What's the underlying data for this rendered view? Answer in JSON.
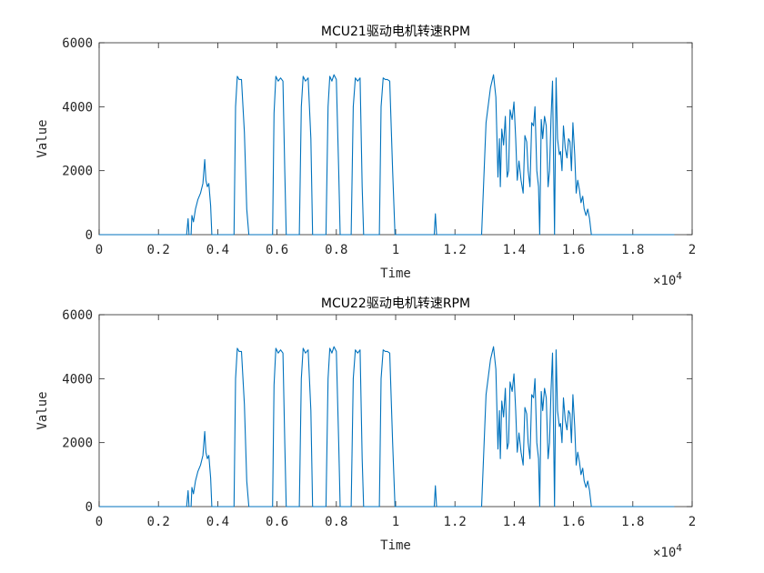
{
  "colors": {
    "series": "#0072BD",
    "axis": "#262626"
  },
  "chart_data": [
    {
      "type": "line",
      "title": "MCU21驱动电机转速RPM",
      "xlabel": "Time",
      "ylabel": "Value",
      "xlim": [
        0,
        20000
      ],
      "ylim": [
        0,
        6000
      ],
      "x_ticks": [
        0,
        2000,
        4000,
        6000,
        8000,
        10000,
        12000,
        14000,
        16000,
        18000,
        20000
      ],
      "x_tick_labels": [
        "0",
        "0.2",
        "0.4",
        "0.6",
        "0.8",
        "1",
        "1.2",
        "1.4",
        "1.6",
        "1.8",
        "2"
      ],
      "y_ticks": [
        0,
        2000,
        4000,
        6000
      ],
      "y_tick_labels": [
        "0",
        "2000",
        "4000",
        "6000"
      ],
      "x_exponent_label": "×10",
      "x_exponent_power": "4",
      "grid": false,
      "series": [
        {
          "points": [
            [
              0,
              0
            ],
            [
              2950,
              0
            ],
            [
              3000,
              500
            ],
            [
              3030,
              0
            ],
            [
              3100,
              0
            ],
            [
              3130,
              600
            ],
            [
              3180,
              400
            ],
            [
              3250,
              800
            ],
            [
              3330,
              1100
            ],
            [
              3420,
              1300
            ],
            [
              3500,
              1600
            ],
            [
              3560,
              2350
            ],
            [
              3600,
              1700
            ],
            [
              3650,
              1500
            ],
            [
              3700,
              1600
            ],
            [
              3760,
              900
            ],
            [
              3800,
              0
            ],
            [
              4550,
              0
            ],
            [
              4600,
              4000
            ],
            [
              4660,
              4950
            ],
            [
              4720,
              4850
            ],
            [
              4800,
              4850
            ],
            [
              4900,
              3200
            ],
            [
              4980,
              800
            ],
            [
              5050,
              0
            ],
            [
              5850,
              0
            ],
            [
              5900,
              3800
            ],
            [
              5960,
              4950
            ],
            [
              6040,
              4800
            ],
            [
              6120,
              4900
            ],
            [
              6200,
              4800
            ],
            [
              6260,
              2000
            ],
            [
              6310,
              0
            ],
            [
              6750,
              0
            ],
            [
              6820,
              4000
            ],
            [
              6880,
              4950
            ],
            [
              6960,
              4800
            ],
            [
              7050,
              4900
            ],
            [
              7140,
              3000
            ],
            [
              7200,
              0
            ],
            [
              7650,
              0
            ],
            [
              7720,
              4000
            ],
            [
              7780,
              4950
            ],
            [
              7850,
              4800
            ],
            [
              7920,
              5000
            ],
            [
              8000,
              4850
            ],
            [
              8080,
              2000
            ],
            [
              8130,
              0
            ],
            [
              8500,
              0
            ],
            [
              8570,
              4000
            ],
            [
              8640,
              4900
            ],
            [
              8720,
              4800
            ],
            [
              8800,
              4900
            ],
            [
              8870,
              1500
            ],
            [
              8920,
              0
            ],
            [
              9450,
              0
            ],
            [
              9510,
              4000
            ],
            [
              9580,
              4900
            ],
            [
              9650,
              4850
            ],
            [
              9720,
              4850
            ],
            [
              9800,
              4800
            ],
            [
              9900,
              2000
            ],
            [
              9980,
              0
            ],
            [
              11300,
              0
            ],
            [
              11340,
              650
            ],
            [
              11380,
              0
            ],
            [
              12900,
              0
            ],
            [
              13050,
              3500
            ],
            [
              13200,
              4600
            ],
            [
              13300,
              5000
            ],
            [
              13380,
              4300
            ],
            [
              13450,
              1800
            ],
            [
              13500,
              3000
            ],
            [
              13530,
              1500
            ],
            [
              13580,
              3300
            ],
            [
              13640,
              2800
            ],
            [
              13700,
              3700
            ],
            [
              13760,
              1800
            ],
            [
              13810,
              2000
            ],
            [
              13860,
              3900
            ],
            [
              13930,
              3600
            ],
            [
              13990,
              4150
            ],
            [
              14050,
              3000
            ],
            [
              14100,
              1700
            ],
            [
              14160,
              2300
            ],
            [
              14230,
              1700
            ],
            [
              14300,
              1300
            ],
            [
              14360,
              3100
            ],
            [
              14420,
              2900
            ],
            [
              14470,
              2000
            ],
            [
              14530,
              1500
            ],
            [
              14590,
              3500
            ],
            [
              14650,
              3400
            ],
            [
              14700,
              4000
            ],
            [
              14760,
              2000
            ],
            [
              14820,
              1500
            ],
            [
              14860,
              0
            ],
            [
              14910,
              3600
            ],
            [
              14960,
              3000
            ],
            [
              15020,
              3700
            ],
            [
              15080,
              3400
            ],
            [
              15140,
              1500
            ],
            [
              15190,
              2000
            ],
            [
              15240,
              3600
            ],
            [
              15290,
              4800
            ],
            [
              15330,
              2000
            ],
            [
              15360,
              0
            ],
            [
              15410,
              4900
            ],
            [
              15460,
              3000
            ],
            [
              15520,
              2500
            ],
            [
              15560,
              2600
            ],
            [
              15610,
              2000
            ],
            [
              15660,
              3400
            ],
            [
              15720,
              2700
            ],
            [
              15780,
              2400
            ],
            [
              15830,
              3000
            ],
            [
              15880,
              2900
            ],
            [
              15930,
              2000
            ],
            [
              15980,
              3500
            ],
            [
              16040,
              2500
            ],
            [
              16090,
              1300
            ],
            [
              16140,
              1700
            ],
            [
              16200,
              1400
            ],
            [
              16250,
              1000
            ],
            [
              16310,
              1200
            ],
            [
              16360,
              800
            ],
            [
              16420,
              600
            ],
            [
              16480,
              800
            ],
            [
              16540,
              500
            ],
            [
              16600,
              0
            ],
            [
              19400,
              0
            ]
          ]
        }
      ]
    },
    {
      "type": "line",
      "title": "MCU22驱动电机转速RPM",
      "xlabel": "Time",
      "ylabel": "Value",
      "xlim": [
        0,
        20000
      ],
      "ylim": [
        0,
        6000
      ],
      "x_ticks": [
        0,
        2000,
        4000,
        6000,
        8000,
        10000,
        12000,
        14000,
        16000,
        18000,
        20000
      ],
      "x_tick_labels": [
        "0",
        "0.2",
        "0.4",
        "0.6",
        "0.8",
        "1",
        "1.2",
        "1.4",
        "1.6",
        "1.8",
        "2"
      ],
      "y_ticks": [
        0,
        2000,
        4000,
        6000
      ],
      "y_tick_labels": [
        "0",
        "2000",
        "4000",
        "6000"
      ],
      "x_exponent_label": "×10",
      "x_exponent_power": "4",
      "grid": false,
      "series": [
        {
          "points": [
            [
              0,
              0
            ],
            [
              2950,
              0
            ],
            [
              3000,
              500
            ],
            [
              3030,
              0
            ],
            [
              3100,
              0
            ],
            [
              3130,
              600
            ],
            [
              3180,
              400
            ],
            [
              3250,
              800
            ],
            [
              3330,
              1100
            ],
            [
              3420,
              1300
            ],
            [
              3500,
              1600
            ],
            [
              3560,
              2350
            ],
            [
              3600,
              1700
            ],
            [
              3650,
              1500
            ],
            [
              3700,
              1600
            ],
            [
              3760,
              900
            ],
            [
              3800,
              0
            ],
            [
              4550,
              0
            ],
            [
              4600,
              4000
            ],
            [
              4660,
              4950
            ],
            [
              4720,
              4850
            ],
            [
              4800,
              4850
            ],
            [
              4900,
              3200
            ],
            [
              4980,
              800
            ],
            [
              5050,
              0
            ],
            [
              5850,
              0
            ],
            [
              5900,
              3800
            ],
            [
              5960,
              4950
            ],
            [
              6040,
              4800
            ],
            [
              6120,
              4900
            ],
            [
              6200,
              4800
            ],
            [
              6260,
              2000
            ],
            [
              6310,
              0
            ],
            [
              6750,
              0
            ],
            [
              6820,
              4000
            ],
            [
              6880,
              4950
            ],
            [
              6960,
              4800
            ],
            [
              7050,
              4900
            ],
            [
              7140,
              3000
            ],
            [
              7200,
              0
            ],
            [
              7650,
              0
            ],
            [
              7720,
              4000
            ],
            [
              7780,
              4950
            ],
            [
              7850,
              4800
            ],
            [
              7920,
              5000
            ],
            [
              8000,
              4850
            ],
            [
              8080,
              2000
            ],
            [
              8130,
              0
            ],
            [
              8500,
              0
            ],
            [
              8570,
              4000
            ],
            [
              8640,
              4900
            ],
            [
              8720,
              4800
            ],
            [
              8800,
              4900
            ],
            [
              8870,
              1500
            ],
            [
              8920,
              0
            ],
            [
              9450,
              0
            ],
            [
              9510,
              4000
            ],
            [
              9580,
              4900
            ],
            [
              9650,
              4850
            ],
            [
              9720,
              4850
            ],
            [
              9800,
              4800
            ],
            [
              9900,
              2000
            ],
            [
              9980,
              0
            ],
            [
              11300,
              0
            ],
            [
              11340,
              650
            ],
            [
              11380,
              0
            ],
            [
              12900,
              0
            ],
            [
              13050,
              3500
            ],
            [
              13200,
              4600
            ],
            [
              13300,
              5000
            ],
            [
              13380,
              4300
            ],
            [
              13450,
              1800
            ],
            [
              13500,
              3000
            ],
            [
              13530,
              1500
            ],
            [
              13580,
              3300
            ],
            [
              13640,
              2800
            ],
            [
              13700,
              3700
            ],
            [
              13760,
              1800
            ],
            [
              13810,
              2000
            ],
            [
              13860,
              3900
            ],
            [
              13930,
              3600
            ],
            [
              13990,
              4150
            ],
            [
              14050,
              3000
            ],
            [
              14100,
              1700
            ],
            [
              14160,
              2300
            ],
            [
              14230,
              1700
            ],
            [
              14300,
              1300
            ],
            [
              14360,
              3100
            ],
            [
              14420,
              2900
            ],
            [
              14470,
              2000
            ],
            [
              14530,
              1500
            ],
            [
              14590,
              3500
            ],
            [
              14650,
              3400
            ],
            [
              14700,
              4000
            ],
            [
              14760,
              2000
            ],
            [
              14820,
              1500
            ],
            [
              14860,
              0
            ],
            [
              14910,
              3600
            ],
            [
              14960,
              3000
            ],
            [
              15020,
              3700
            ],
            [
              15080,
              3400
            ],
            [
              15140,
              1500
            ],
            [
              15190,
              2000
            ],
            [
              15240,
              3600
            ],
            [
              15290,
              4800
            ],
            [
              15330,
              2000
            ],
            [
              15360,
              0
            ],
            [
              15410,
              4900
            ],
            [
              15460,
              3000
            ],
            [
              15520,
              2500
            ],
            [
              15560,
              2600
            ],
            [
              15610,
              2000
            ],
            [
              15660,
              3400
            ],
            [
              15720,
              2700
            ],
            [
              15780,
              2400
            ],
            [
              15830,
              3000
            ],
            [
              15880,
              2900
            ],
            [
              15930,
              2000
            ],
            [
              15980,
              3500
            ],
            [
              16040,
              2500
            ],
            [
              16090,
              1300
            ],
            [
              16140,
              1700
            ],
            [
              16200,
              1400
            ],
            [
              16250,
              1000
            ],
            [
              16310,
              1200
            ],
            [
              16360,
              800
            ],
            [
              16420,
              600
            ],
            [
              16480,
              800
            ],
            [
              16540,
              500
            ],
            [
              16600,
              0
            ],
            [
              19400,
              0
            ]
          ]
        }
      ]
    }
  ]
}
